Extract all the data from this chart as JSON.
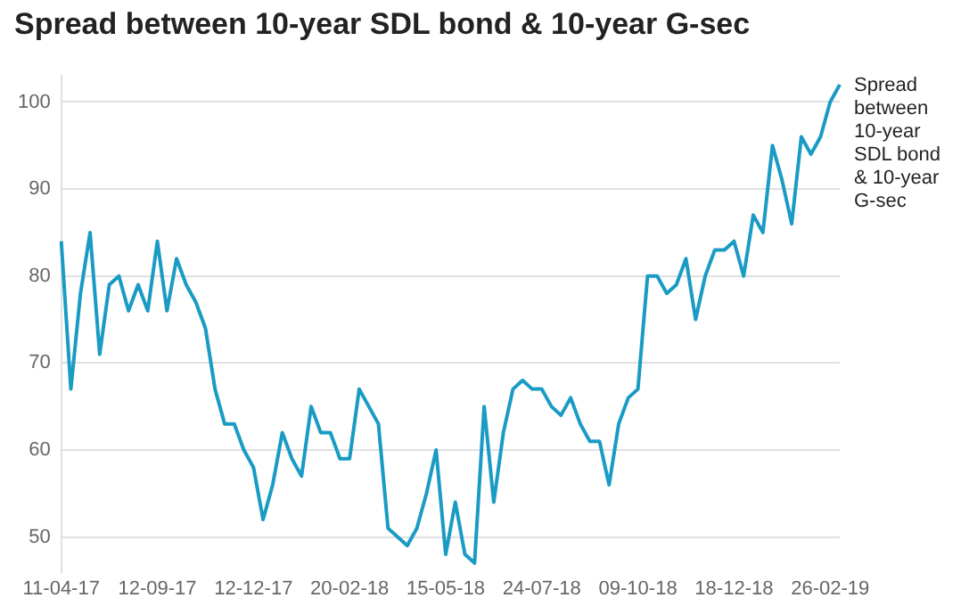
{
  "chart_data": {
    "type": "line",
    "title": "Spread between 10-year SDL bond & 10-year G-sec",
    "categories": [
      "11-04-17",
      null,
      null,
      null,
      null,
      null,
      null,
      null,
      null,
      null,
      "12-09-17",
      null,
      null,
      null,
      null,
      null,
      null,
      null,
      null,
      null,
      "12-12-17",
      null,
      null,
      null,
      null,
      null,
      null,
      null,
      null,
      null,
      "20-02-18",
      null,
      null,
      null,
      null,
      null,
      null,
      null,
      null,
      null,
      "15-05-18",
      null,
      null,
      null,
      null,
      null,
      null,
      null,
      null,
      null,
      "24-07-18",
      null,
      null,
      null,
      null,
      null,
      null,
      null,
      null,
      null,
      "09-10-18",
      null,
      null,
      null,
      null,
      null,
      null,
      null,
      null,
      null,
      "18-12-18",
      null,
      null,
      null,
      null,
      null,
      null,
      null,
      null,
      null,
      "26-02-19",
      null
    ],
    "series": [
      {
        "name": "Spread between 10-year SDL bond & 10-year G-sec",
        "color": "#1a9bc4",
        "values": [
          84,
          67,
          78,
          85,
          71,
          79,
          80,
          76,
          79,
          76,
          84,
          76,
          82,
          79,
          77,
          74,
          67,
          63,
          63,
          60,
          58,
          52,
          56,
          62,
          59,
          57,
          65,
          62,
          62,
          59,
          59,
          67,
          65,
          63,
          51,
          50,
          49,
          51,
          55,
          60,
          48,
          54,
          48,
          47,
          65,
          54,
          62,
          67,
          68,
          67,
          67,
          65,
          64,
          66,
          63,
          61,
          61,
          56,
          63,
          66,
          67,
          80,
          80,
          78,
          79,
          82,
          75,
          80,
          83,
          83,
          84,
          80,
          87,
          85,
          95,
          91,
          86,
          96,
          94,
          96,
          100,
          102
        ]
      }
    ],
    "ylim": [
      46,
      103
    ],
    "yticks": [
      50,
      60,
      70,
      80,
      90,
      100
    ],
    "grid": "y",
    "marker": "none",
    "line_style": "solid",
    "legend": false
  }
}
